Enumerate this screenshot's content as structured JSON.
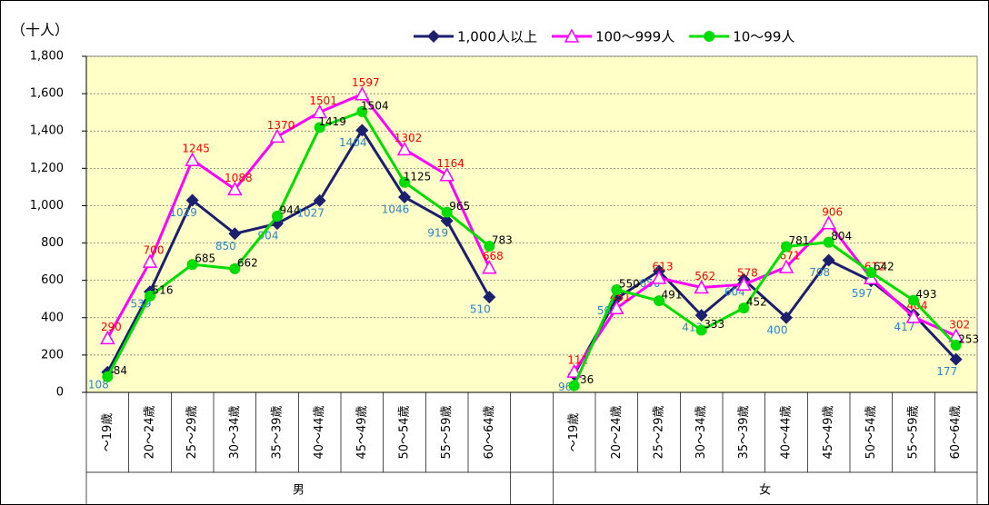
{
  "chart_data": {
    "type": "line",
    "y_label": "（十人）",
    "categories": [
      "～19歳",
      "20～24歳",
      "25～29歳",
      "30～34歳",
      "35～39歳",
      "40～44歳",
      "45～49歳",
      "50～54歳",
      "55～59歳",
      "60～64歳",
      null,
      "～19歳",
      "20～24歳",
      "25～29歳",
      "30～34歳",
      "35～39歳",
      "40～44歳",
      "45～49歳",
      "50～54歳",
      "55～59歳",
      "60～64歳"
    ],
    "groups": [
      "男",
      "女"
    ],
    "series": [
      {
        "name": "1,000人以上",
        "color": "#1b1f6e",
        "label_color": "#2e86c8",
        "marker": "diamond",
        "values": [
          108,
          539,
          1029,
          850,
          904,
          1027,
          1404,
          1046,
          919,
          510,
          null,
          96,
          503,
          650,
          413,
          604,
          400,
          708,
          597,
          417,
          177
        ]
      },
      {
        "name": "100～999人",
        "color": "#ff00ff",
        "label_color": "#ff0000",
        "marker": "triangle",
        "values": [
          290,
          700,
          1245,
          1088,
          1370,
          1501,
          1597,
          1302,
          1164,
          668,
          null,
          111,
          451,
          613,
          562,
          578,
          671,
          906,
          612,
          404,
          302
        ]
      },
      {
        "name": "10～99人",
        "color": "#00dd00",
        "label_color": "#000000",
        "marker": "circle",
        "values": [
          84,
          516,
          685,
          662,
          944,
          1419,
          1504,
          1125,
          965,
          783,
          null,
          36,
          550,
          491,
          333,
          452,
          781,
          804,
          642,
          493,
          253
        ]
      }
    ],
    "ylim": [
      0,
      1800
    ],
    "yticks": [
      0,
      200,
      400,
      600,
      800,
      {
        "value": 1000,
        "label": "1,000"
      },
      {
        "value": 1200,
        "label": "1,200"
      },
      {
        "value": 1400,
        "label": "1,400"
      },
      {
        "value": 1600,
        "label": "1,600"
      },
      {
        "value": 1800,
        "label": "1,800"
      }
    ],
    "grid": true,
    "background": "#ffffc8"
  }
}
